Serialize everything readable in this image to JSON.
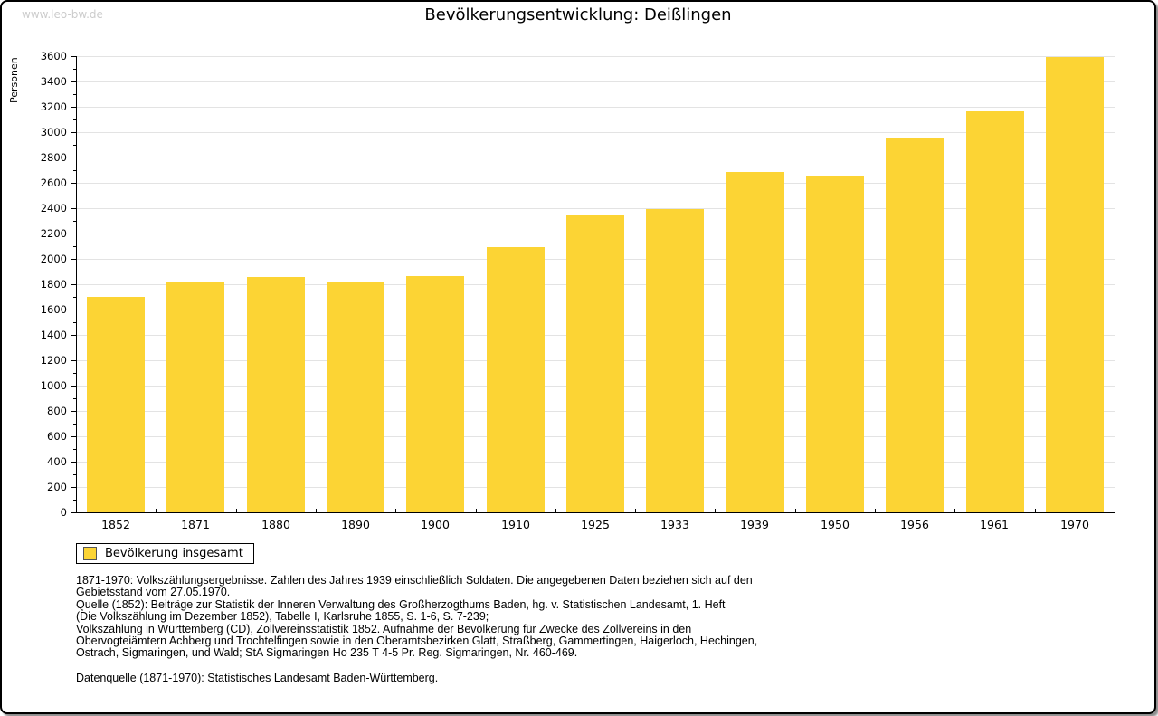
{
  "watermark": "www.leo-bw.de",
  "title": "Bevölkerungsentwicklung: Deißlingen",
  "y_axis_label": "Personen",
  "legend": {
    "label": "Bevölkerung insgesamt"
  },
  "colors": {
    "bar": "#fcd434",
    "grid": "#e3e3e3",
    "axis": "#000000",
    "watermark": "#cccccc",
    "swatch_border": "#555555"
  },
  "chart_data": {
    "type": "bar",
    "title": "Bevölkerungsentwicklung: Deißlingen",
    "categories": [
      "1852",
      "1871",
      "1880",
      "1890",
      "1900",
      "1910",
      "1925",
      "1933",
      "1939",
      "1950",
      "1956",
      "1961",
      "1970"
    ],
    "values": [
      1700,
      1820,
      1860,
      1815,
      1865,
      2090,
      2340,
      2390,
      2685,
      2660,
      2960,
      3165,
      3590
    ],
    "series_name": "Bevölkerung insgesamt",
    "xlabel": "",
    "ylabel": "Personen",
    "ylim": [
      0,
      3600
    ],
    "y_major_step": 200,
    "y_minor_step": 100,
    "grid": true,
    "legend_position": "bottom-left",
    "bar_color": "#fcd434"
  },
  "footnotes": {
    "lines": [
      "1871-1970: Volkszählungsergebnisse. Zahlen des Jahres 1939 einschließlich Soldaten. Die angegebenen Daten beziehen sich auf den",
      "Gebietsstand vom 27.05.1970.",
      "Quelle (1852): Beiträge zur Statistik der Inneren Verwaltung des Großherzogthums Baden, hg. v. Statistischen Landesamt, 1. Heft",
      "(Die Volkszählung im Dezember 1852), Tabelle I, Karlsruhe 1855, S. 1-6, S. 7-239;",
      "Volkszählung in Württemberg (CD), Zollvereinsstatistik 1852. Aufnahme der Bevölkerung für Zwecke des Zollvereins in den",
      "Obervogteiämtern Achberg und Trochtelfingen sowie in den Oberamtsbezirken Glatt, Straßberg, Gammertingen, Haigerloch, Hechingen,",
      "Ostrach, Sigmaringen, und Wald; StA Sigmaringen Ho 235 T 4-5 Pr. Reg. Sigmaringen, Nr. 460-469."
    ],
    "datasource": "Datenquelle (1871-1970): Statistisches Landesamt Baden-Württemberg."
  }
}
